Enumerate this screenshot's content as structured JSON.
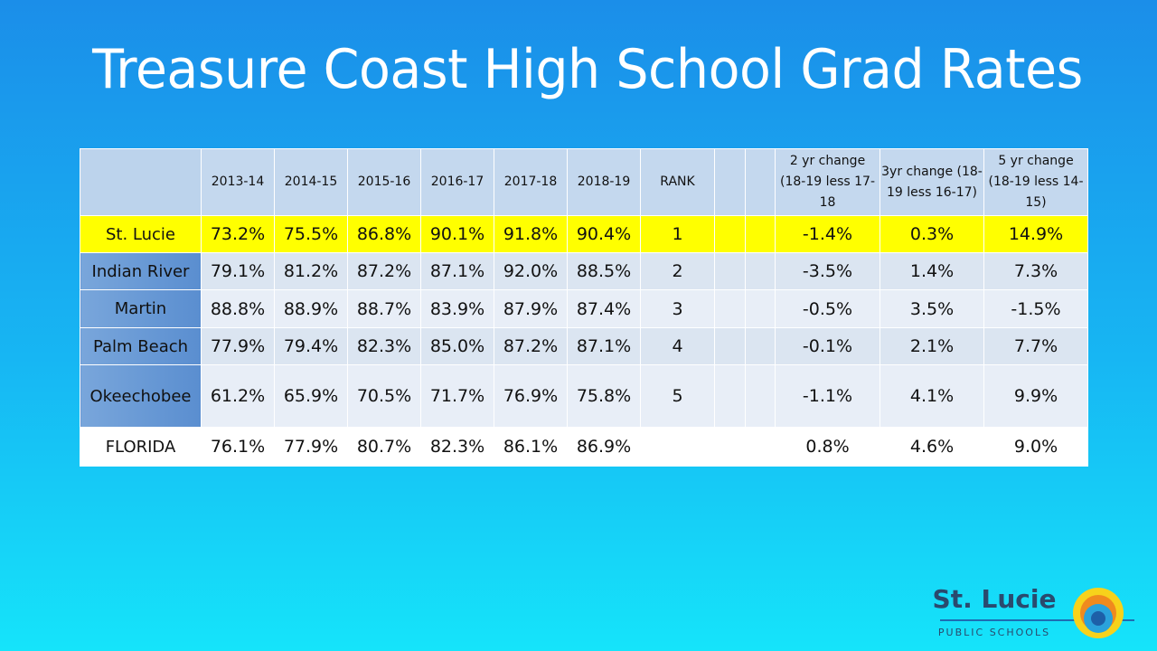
{
  "title": "Treasure Coast High School Grad Rates",
  "table": {
    "header": [
      "2013-14",
      "2014-15",
      "2015-16",
      "2016-17",
      "2017-18",
      "2018-19",
      "RANK",
      "2 yr change (18-19 less 17-18",
      "3yr change (18-19 less 16-17)",
      "5 yr change (18-19 less 14-15)"
    ],
    "rows": [
      {
        "name": "St. Lucie",
        "values": [
          "73.2%",
          "75.5%",
          "86.8%",
          "90.1%",
          "91.8%",
          "90.4%"
        ],
        "rank": "1",
        "changes": [
          "-1.4%",
          "0.3%",
          "14.9%"
        ]
      },
      {
        "name": "Indian River",
        "values": [
          "79.1%",
          "81.2%",
          "87.2%",
          "87.1%",
          "92.0%",
          "88.5%"
        ],
        "rank": "2",
        "changes": [
          "-3.5%",
          "1.4%",
          "7.3%"
        ]
      },
      {
        "name": "Martin",
        "values": [
          "88.8%",
          "88.9%",
          "88.7%",
          "83.9%",
          "87.9%",
          "87.4%"
        ],
        "rank": "3",
        "changes": [
          "-0.5%",
          "3.5%",
          "-1.5%"
        ]
      },
      {
        "name": "Palm Beach",
        "values": [
          "77.9%",
          "79.4%",
          "82.3%",
          "85.0%",
          "87.2%",
          "87.1%"
        ],
        "rank": "4",
        "changes": [
          "-0.1%",
          "2.1%",
          "7.7%"
        ]
      },
      {
        "name": "Okeechobee",
        "values": [
          "61.2%",
          "65.9%",
          "70.5%",
          "71.7%",
          "76.9%",
          "75.8%"
        ],
        "rank": "5",
        "changes": [
          "-1.1%",
          "4.1%",
          "9.9%"
        ]
      },
      {
        "name": "FLORIDA",
        "values": [
          "76.1%",
          "77.9%",
          "80.7%",
          "82.3%",
          "86.1%",
          "86.9%"
        ],
        "changes": [
          "0.8%",
          "4.6%",
          "9.0%"
        ]
      }
    ]
  },
  "logo": {
    "name": "St. Lucie",
    "sub": "PUBLIC SCHOOLS"
  }
}
